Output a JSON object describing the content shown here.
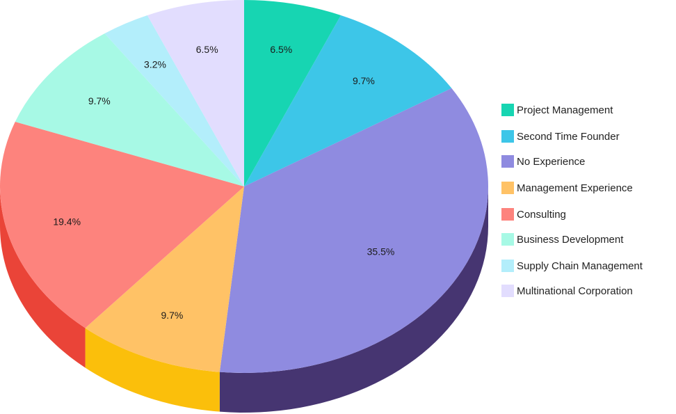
{
  "chart_data": {
    "type": "pie",
    "style": "3d",
    "legend_position": "right",
    "series": [
      {
        "name": "Project Management",
        "value": 6.5,
        "label": "6.5%",
        "color": "#17D5B2",
        "side_color": "#0f9c82"
      },
      {
        "name": "Second Time Founder",
        "value": 9.7,
        "label": "9.7%",
        "color": "#3DC6E8",
        "side_color": "#2a8fa9"
      },
      {
        "name": "No Experience",
        "value": 35.5,
        "label": "35.5%",
        "color": "#8F8BE0",
        "side_color": "#463571"
      },
      {
        "name": "Management Experience",
        "value": 9.7,
        "label": "9.7%",
        "color": "#FFC266",
        "side_color": "#FBBF0B"
      },
      {
        "name": "Consulting",
        "value": 19.4,
        "label": "19.4%",
        "color": "#FD837D",
        "side_color": "#EA4438"
      },
      {
        "name": "Business Development",
        "value": 9.7,
        "label": "9.7%",
        "color": "#A7F9E5",
        "side_color": "#72c7b2"
      },
      {
        "name": "Supply Chain Management",
        "value": 3.2,
        "label": "3.2%",
        "color": "#B3EEFB",
        "side_color": "#7dc2d1"
      },
      {
        "name": "Multinational Corporation",
        "value": 6.5,
        "label": "6.5%",
        "color": "#E2DDFE",
        "side_color": "#aaa3d4"
      }
    ]
  }
}
